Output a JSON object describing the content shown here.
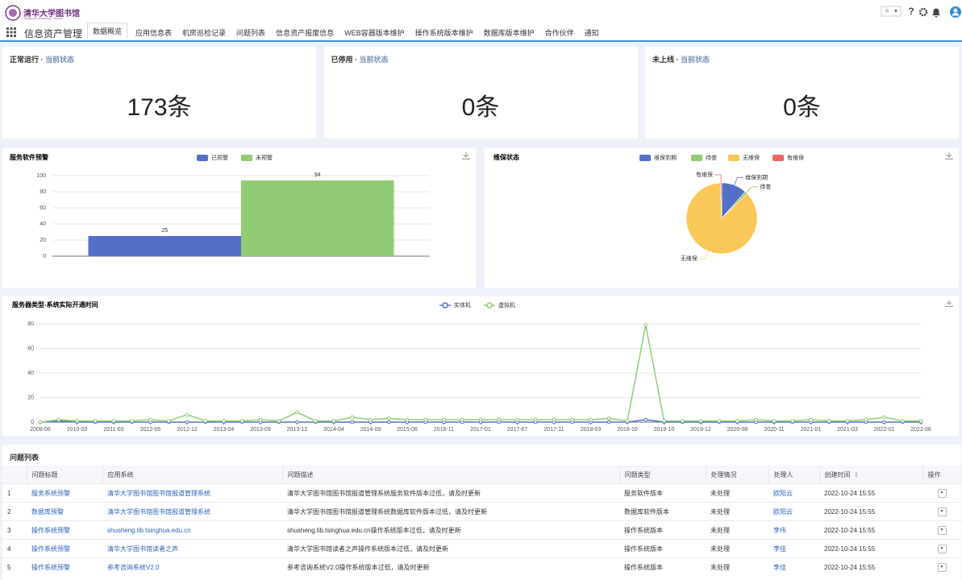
{
  "header": {
    "logo": "清华大学图书馆",
    "logo_en": "Tsinghua University Library",
    "app_title": "信息资产管理",
    "tabs": [
      "数据概览",
      "应用信息表",
      "机房巡检记录",
      "问题列表",
      "信息资产报废信息",
      "WEB容器版本维护",
      "操作系统版本维护",
      "数据库版本维护",
      "合作伙伴",
      "通知"
    ]
  },
  "cards": [
    {
      "title": "正常运行",
      "subtitle": "当前状态",
      "value": "173条"
    },
    {
      "title": "已停用",
      "subtitle": "当前状态",
      "value": "0条"
    },
    {
      "title": "未上线",
      "subtitle": "当前状态",
      "value": "0条"
    }
  ],
  "chart_data": [
    {
      "type": "bar",
      "title": "服务软件预警",
      "categories": [
        null
      ],
      "series": [
        {
          "name": "已预警",
          "color": "#5470c6",
          "values": [
            25
          ]
        },
        {
          "name": "未预警",
          "color": "#91cc75",
          "values": [
            94
          ]
        }
      ],
      "ylim": [
        0,
        100
      ],
      "yticks": [
        0,
        20,
        40,
        60,
        80,
        100
      ],
      "grid": true,
      "legend": "top"
    },
    {
      "type": "pie",
      "title": "维保状态",
      "categories": [
        "维保到期",
        "待查",
        "无维保",
        "有维保"
      ],
      "values": [
        20,
        2,
        150,
        1
      ],
      "colors": [
        "#5470c6",
        "#91cc75",
        "#fac858",
        "#ee6666"
      ],
      "legend": "top"
    },
    {
      "type": "line",
      "title": "服务器类型-系统实际开通时间",
      "categories": [
        "2008-06",
        null,
        "2010-03",
        null,
        "2011-03",
        null,
        "2012-05",
        null,
        "2012-12",
        null,
        "2013-04",
        null,
        "2013-09",
        null,
        "2013-12",
        null,
        "2014-04",
        null,
        "2014-09",
        null,
        "2015-06",
        null,
        "2016-11",
        null,
        "2017-01",
        null,
        "2017-07",
        null,
        "2017-11",
        null,
        "2018-03",
        null,
        "2018-10",
        null,
        "2019-10",
        null,
        "2019-12",
        null,
        "2020-08",
        null,
        "2020-11",
        null,
        "2021-01",
        null,
        "2021-03",
        null,
        "2022-01",
        null,
        "2022-06"
      ],
      "series": [
        {
          "name": "实体机",
          "color": "#5470c6",
          "values": [
            0,
            1,
            0,
            0,
            0,
            0,
            0,
            0,
            0,
            0,
            0,
            0,
            0,
            0,
            0,
            0,
            0,
            0,
            0,
            0,
            0,
            0,
            0,
            0,
            0,
            0,
            0,
            0,
            0,
            0,
            0,
            0,
            0,
            2,
            0,
            0,
            0,
            0,
            0,
            0,
            0,
            0,
            0,
            0,
            0,
            0,
            0,
            0,
            0
          ]
        },
        {
          "name": "虚拟机",
          "color": "#91cc75",
          "values": [
            0,
            2,
            1,
            1,
            1,
            1,
            2,
            1,
            6,
            1,
            1,
            1,
            2,
            1,
            8,
            1,
            1,
            4,
            2,
            3,
            2,
            2,
            2,
            2,
            2,
            2,
            2,
            2,
            2,
            2,
            2,
            3,
            1,
            79,
            1,
            1,
            1,
            1,
            1,
            2,
            1,
            1,
            2,
            1,
            1,
            2,
            4,
            1,
            1
          ]
        }
      ],
      "ylim": [
        0,
        80
      ],
      "yticks": [
        0,
        20,
        40,
        60,
        80
      ],
      "grid": true,
      "legend": "top"
    }
  ],
  "table": {
    "title": "问题列表",
    "columns": [
      "",
      "问题标题",
      "应用系统",
      "问题描述",
      "问题类型",
      "处理情况",
      "处理人",
      "创建时间",
      "操作"
    ],
    "rows": [
      [
        "1",
        "服务系统预警",
        "清华大学图书馆图书馆报道管理系统",
        "清华大学图书馆图书馆报道管理系统服务软件版本过低，请及时更新",
        "服务软件版本",
        "未处理",
        "欧阳云",
        "2022-10-24 15:55"
      ],
      [
        "2",
        "数据库预警",
        "清华大学图书馆图书馆报道管理系统",
        "清华大学图书馆图书馆报道管理系统数据库软件版本过低，请及时更新",
        "数据库软件版本",
        "未处理",
        "欧阳云",
        "2022-10-24 15:55"
      ],
      [
        "3",
        "操作系统预警",
        "shusheng.lib.tsinghua.edu.cn",
        "shusheng.lib.tsinghua.edu.cn操作系统版本过低，请及时更新",
        "操作系统版本",
        "未处理",
        "李伟",
        "2022-10-24 15:55"
      ],
      [
        "4",
        "操作系统预警",
        "清华大学图书馆读者之声",
        "清华大学图书馆读者之声操作系统版本过低，请及时更新",
        "操作系统版本",
        "未处理",
        "李佳",
        "2022-10-24 15:55"
      ],
      [
        "5",
        "操作系统预警",
        "参考咨询系统V2.0",
        "参考咨询系统V2.0操作系统版本过低，请及时更新",
        "操作系统版本",
        "未处理",
        "李佳",
        "2022-10-24 15:55"
      ]
    ]
  }
}
